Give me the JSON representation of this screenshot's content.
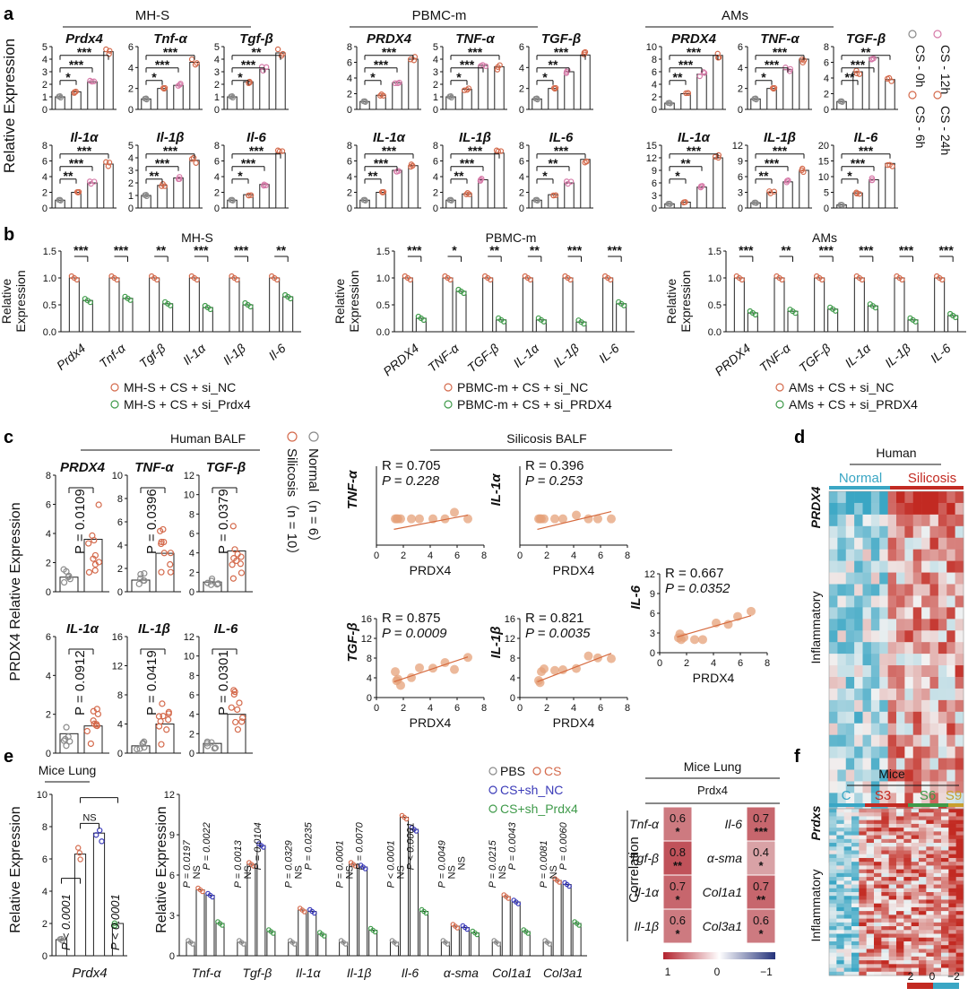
{
  "colors": {
    "grey": "#8a8a8a",
    "orange": "#d46a4c",
    "pink": "#d67aa8",
    "green": "#3f9a4a",
    "blue": "#3a3ab8",
    "fitline": "#d66a3e",
    "heat_hi": "#c22a22",
    "heat_mid": "#f2f2f2",
    "heat_lo": "#3aa6c4",
    "corr_hi": "#b3232e",
    "corr_lo": "#24327a"
  },
  "panel_labels": [
    "a",
    "b",
    "c",
    "d",
    "e",
    "f"
  ],
  "panel_a": {
    "y_label": "Relative Expression",
    "legend": [
      "CS - 0h",
      "CS - 6h",
      "CS - 12h",
      "CS - 24h"
    ],
    "groups": [
      {
        "title": "MH-S",
        "charts": [
          {
            "gene": "Prdx4",
            "ymax": 5,
            "ticks": [
              0,
              1,
              2,
              3,
              4,
              5
            ],
            "values": [
              1.0,
              1.4,
              2.2,
              4.6
            ],
            "sig": [
              "*",
              "***",
              "***"
            ]
          },
          {
            "gene": "Tnf-α",
            "ymax": 6,
            "ticks": [
              0,
              2,
              4,
              6
            ],
            "values": [
              1.0,
              2.0,
              2.3,
              4.5
            ],
            "sig": [
              "*",
              "***",
              "***"
            ]
          },
          {
            "gene": "Tgf-β",
            "ymax": 5,
            "ticks": [
              0,
              1,
              2,
              3,
              4,
              5
            ],
            "values": [
              1.0,
              2.2,
              3.2,
              4.5
            ],
            "sig": [
              "*",
              "***",
              "**"
            ]
          },
          {
            "gene": "Il-1α",
            "ymax": 8,
            "ticks": [
              0,
              2,
              4,
              6,
              8
            ],
            "values": [
              1.0,
              2.0,
              3.2,
              5.6
            ],
            "sig": [
              "**",
              "***",
              "***"
            ]
          },
          {
            "gene": "Il-1β",
            "ymax": 5,
            "ticks": [
              0,
              1,
              2,
              3,
              4,
              5
            ],
            "values": [
              1.0,
              1.8,
              2.4,
              3.8
            ],
            "sig": [
              "**",
              "***",
              "***"
            ]
          },
          {
            "gene": "Il-6",
            "ymax": 8,
            "ticks": [
              0,
              2,
              4,
              6,
              8
            ],
            "values": [
              1.0,
              1.7,
              3.0,
              7.0
            ],
            "sig": [
              "*",
              "***",
              "***"
            ]
          }
        ]
      },
      {
        "title": "PBMC-m",
        "charts": [
          {
            "gene": "PRDX4",
            "ymax": 8,
            "ticks": [
              0,
              2,
              4,
              6,
              8
            ],
            "values": [
              1.0,
              1.8,
              3.4,
              6.4
            ],
            "sig": [
              "*",
              "***",
              "***"
            ]
          },
          {
            "gene": "TNF-α",
            "ymax": 5,
            "ticks": [
              0,
              1,
              2,
              3,
              4,
              5
            ],
            "values": [
              1.0,
              1.6,
              3.5,
              3.4
            ],
            "sig": [
              "*",
              "***",
              "***"
            ]
          },
          {
            "gene": "TGF-β",
            "ymax": 6,
            "ticks": [
              0,
              2,
              4,
              6
            ],
            "values": [
              1.0,
              2.0,
              3.6,
              5.2
            ],
            "sig": [
              "*",
              "**",
              "***"
            ]
          },
          {
            "gene": "IL-1α",
            "ymax": 8,
            "ticks": [
              0,
              2,
              4,
              6,
              8
            ],
            "values": [
              1.0,
              2.0,
              4.8,
              5.4
            ],
            "sig": [
              "**",
              "***",
              "***"
            ]
          },
          {
            "gene": "IL-1β",
            "ymax": 8,
            "ticks": [
              0,
              2,
              4,
              6,
              8
            ],
            "values": [
              1.0,
              1.8,
              3.6,
              7.0
            ],
            "sig": [
              "**",
              "***",
              "***"
            ]
          },
          {
            "gene": "IL-6",
            "ymax": 8,
            "ticks": [
              0,
              2,
              4,
              6,
              8
            ],
            "values": [
              1.0,
              1.7,
              3.2,
              6.2
            ],
            "sig": [
              "*",
              "**",
              "***"
            ]
          }
        ]
      },
      {
        "title": "AMs",
        "charts": [
          {
            "gene": "PRDX4",
            "ymax": 10,
            "ticks": [
              0,
              2,
              4,
              6,
              8,
              10
            ],
            "values": [
              1.0,
              2.5,
              5.6,
              8.6
            ],
            "sig": [
              "**",
              "***",
              "***"
            ]
          },
          {
            "gene": "TNF-α",
            "ymax": 6,
            "ticks": [
              0,
              2,
              4,
              6
            ],
            "values": [
              1.0,
              2.0,
              3.8,
              4.8
            ],
            "sig": [
              "*",
              "***",
              "***"
            ]
          },
          {
            "gene": "TGF-β",
            "ymax": 8,
            "ticks": [
              0,
              2,
              4,
              6,
              8
            ],
            "values": [
              1.0,
              4.8,
              6.6,
              3.8
            ],
            "sig": [
              "**",
              "***",
              "**"
            ]
          },
          {
            "gene": "IL-1α",
            "ymax": 15,
            "ticks": [
              0,
              3,
              6,
              9,
              12,
              15
            ],
            "values": [
              1.0,
              1.4,
              5.0,
              12.0
            ],
            "sig": [
              "*",
              "**",
              "***"
            ]
          },
          {
            "gene": "IL-1β",
            "ymax": 12,
            "ticks": [
              0,
              3,
              6,
              9,
              12
            ],
            "values": [
              1.0,
              3.0,
              5.0,
              7.2
            ],
            "sig": [
              "**",
              "***",
              "***"
            ]
          },
          {
            "gene": "IL-6",
            "ymax": 20,
            "ticks": [
              0,
              5,
              10,
              15,
              20
            ],
            "values": [
              1.0,
              4.8,
              9.0,
              14.2
            ],
            "sig": [
              "*",
              "***",
              "***"
            ]
          }
        ]
      }
    ]
  },
  "panel_b": {
    "y_label_1": "Relative",
    "y_label_2": "Expression",
    "ticks": [
      "0.0",
      "0.5",
      "1.0",
      "1.5"
    ],
    "groups": [
      {
        "title": "MH-S",
        "genes": [
          "Prdx4",
          "Tnf-α",
          "Tgf-β",
          "Il-1α",
          "Il-1β",
          "Il-6"
        ],
        "italic": true,
        "nc": [
          1.0,
          1.0,
          1.0,
          1.0,
          1.0,
          1.0
        ],
        "si": [
          0.58,
          0.62,
          0.52,
          0.45,
          0.5,
          0.65
        ],
        "sig": [
          "***",
          "***",
          "**",
          "***",
          "***",
          "**"
        ],
        "legend": [
          "MH-S + CS + si_NC",
          "MH-S + CS + si_Prdx4"
        ]
      },
      {
        "title": "PBMC-m",
        "genes": [
          "PRDX4",
          "TNF-α",
          "TGF-β",
          "IL-1α",
          "IL-1β",
          "IL-6"
        ],
        "italic": true,
        "nc": [
          1.0,
          1.0,
          1.0,
          1.0,
          1.0,
          1.0
        ],
        "si": [
          0.25,
          0.75,
          0.22,
          0.22,
          0.18,
          0.52
        ],
        "sig": [
          "***",
          "*",
          "**",
          "**",
          "***",
          "***"
        ],
        "legend": [
          "PBMC-m + CS + si_NC",
          "PBMC-m + CS + si_PRDX4"
        ]
      },
      {
        "title": "AMs",
        "genes": [
          "PRDX4",
          "TNF-α",
          "TGF-β",
          "IL-1α",
          "IL-1β",
          "IL-6"
        ],
        "italic": true,
        "nc": [
          1.0,
          1.0,
          1.0,
          1.0,
          1.0,
          1.0
        ],
        "si": [
          0.35,
          0.38,
          0.42,
          0.48,
          0.22,
          0.3
        ],
        "sig": [
          "***",
          "**",
          "***",
          "***",
          "***",
          "***"
        ],
        "legend": [
          "AMs + CS + si_NC",
          "AMs + CS + si_PRDX4"
        ]
      }
    ]
  },
  "panel_c": {
    "title_left": "Human BALF",
    "title_right": "Silicosis BALF",
    "y_label": "PRDX4 Relative Expression",
    "legend": [
      "Normal（n = 6）",
      "Silicosis（n = 10）"
    ],
    "bars": [
      {
        "gene": "PRDX4",
        "ymax": 8,
        "ticks": [
          0,
          2,
          4,
          6,
          8
        ],
        "normal": 1.0,
        "silicosis": 3.6,
        "p": "P = 0.0109"
      },
      {
        "gene": "TNF-α",
        "ymax": 10,
        "ticks": [
          0,
          2,
          4,
          6,
          8,
          10
        ],
        "normal": 1.0,
        "silicosis": 3.3,
        "p": "P = 0.0396"
      },
      {
        "gene": "TGF-β",
        "ymax": 12,
        "ticks": [
          0,
          2,
          4,
          6,
          8,
          10,
          12
        ],
        "normal": 1.0,
        "silicosis": 4.2,
        "p": "P = 0.0379"
      },
      {
        "gene": "IL-1α",
        "ymax": 6,
        "ticks": [
          0,
          2,
          4,
          6
        ],
        "normal": 1.0,
        "silicosis": 1.4,
        "p": "P = 0.0912"
      },
      {
        "gene": "IL-1β",
        "ymax": 16,
        "ticks": [
          0,
          4,
          8,
          12,
          16
        ],
        "normal": 1.0,
        "silicosis": 4.0,
        "p": "P = 0.0419"
      },
      {
        "gene": "IL-6",
        "ymax": 12,
        "ticks": [
          0,
          2,
          4,
          6,
          8,
          10,
          12
        ],
        "normal": 1.0,
        "silicosis": 4.0,
        "p": "P = 0.0301"
      }
    ],
    "scatters": [
      {
        "gene": "TNF-α",
        "R": "R = 0.705",
        "P": "P = 0.228",
        "xlabel": "PRDX4",
        "xticks": [
          0,
          2,
          4,
          6,
          8
        ],
        "yticks": [],
        "ymax": 6
      },
      {
        "gene": "IL-1α",
        "R": "R = 0.396",
        "P": "P = 0.253",
        "xlabel": "PRDX4",
        "xticks": [
          0,
          2,
          4,
          6,
          8
        ],
        "yticks": [],
        "ymax": 6
      },
      {
        "gene": "IL-6",
        "R": "R = 0.667",
        "P": "P = 0.0352",
        "xlabel": "PRDX4",
        "xticks": [
          0,
          2,
          4,
          6,
          8
        ],
        "yticks": [
          0,
          3,
          6,
          9,
          12
        ],
        "ymax": 12
      },
      {
        "gene": "TGF-β",
        "R": "R = 0.875",
        "P": "P = 0.0009",
        "xlabel": "PRDX4",
        "xticks": [
          0,
          2,
          4,
          6,
          8
        ],
        "yticks": [
          0,
          4,
          8,
          12,
          16
        ],
        "ymax": 16
      },
      {
        "gene": "IL-1β",
        "R": "R = 0.821",
        "P": "P = 0.0035",
        "xlabel": "PRDX4",
        "xticks": [
          0,
          2,
          4,
          6,
          8
        ],
        "yticks": [
          0,
          4,
          8,
          12,
          16
        ],
        "ymax": 16
      }
    ]
  },
  "panel_d": {
    "title": "Human",
    "groups": [
      "Normal",
      "Silicosis"
    ],
    "row_labels": [
      "PRDX4",
      "Inflammatory"
    ],
    "scale": [
      "2",
      "0",
      "−2"
    ]
  },
  "panel_e": {
    "lung_title": "Mice Lung",
    "y_label": "Relative Expression",
    "legend": [
      "PBS",
      "CS",
      "CS+sh_NC",
      "CS+sh_Prdx4"
    ],
    "prdx4": {
      "gene": "Prdx4",
      "ymax": 10,
      "ticks": [
        0,
        2,
        4,
        6,
        8,
        10
      ],
      "values": [
        1.0,
        6.3,
        7.6,
        2.0
      ],
      "p": [
        "P < 0.0001",
        "NS",
        "P < 0.0001"
      ]
    },
    "multi": {
      "ymax": 12,
      "ticks": [
        0,
        3,
        6,
        9,
        12
      ],
      "genes": [
        "Tnf-α",
        "Tgf-β",
        "Il-1α",
        "Il-1β",
        "Il-6",
        "α-sma",
        "Col1a1",
        "Col3a1"
      ],
      "values": [
        [
          1.0,
          4.9,
          4.5,
          2.4
        ],
        [
          1.0,
          6.8,
          8.2,
          1.8
        ],
        [
          1.0,
          3.4,
          3.3,
          1.6
        ],
        [
          1.0,
          6.8,
          6.6,
          1.9
        ],
        [
          1.0,
          10.3,
          9.4,
          3.3
        ],
        [
          1.0,
          2.2,
          2.1,
          1.7
        ],
        [
          1.0,
          4.4,
          4.0,
          1.8
        ],
        [
          1.0,
          5.6,
          5.3,
          2.4
        ]
      ],
      "p": [
        [
          "P = 0.0197",
          "NS",
          "P = 0.0022"
        ],
        [
          "P = 0.0013",
          "NS",
          "P = 0.0104"
        ],
        [
          "P = 0.0329",
          "NS",
          "P = 0.0235"
        ],
        [
          "P = 0.0001",
          "NS",
          "P = 0.0070"
        ],
        [
          "P < 0.0001",
          "NS",
          "P < 0.0001"
        ],
        [
          "P = 0.0049",
          "NS",
          "NS"
        ],
        [
          "P = 0.0215",
          "NS",
          "P = 0.0043"
        ],
        [
          "P = 0.0081",
          "NS",
          "P = 0.0060"
        ]
      ]
    },
    "corr": {
      "title": "Mice Lung",
      "header": "Prdx4",
      "ylabel": "Correlation",
      "left": [
        {
          "gene": "Tnf-α",
          "r": "0.6",
          "s": "*"
        },
        {
          "gene": "Tgf-β",
          "r": "0.8",
          "s": "**"
        },
        {
          "gene": "Il-1α",
          "r": "0.7",
          "s": "*"
        },
        {
          "gene": "Il-1β",
          "r": "0.6",
          "s": "*"
        }
      ],
      "right": [
        {
          "gene": "Il-6",
          "r": "0.7",
          "s": "***"
        },
        {
          "gene": "α-sma",
          "r": "0.4",
          "s": "*"
        },
        {
          "gene": "Col1a1",
          "r": "0.7",
          "s": "**"
        },
        {
          "gene": "Col3a1",
          "r": "0.6",
          "s": "*"
        }
      ],
      "scale": [
        "1",
        "0",
        "−1"
      ]
    }
  },
  "panel_f": {
    "title": "Mice",
    "groups": [
      "C",
      "S3",
      "S6",
      "S9"
    ],
    "group_colors": [
      "#3aa6c4",
      "#c22a22",
      "#3f9a4a",
      "#c8a030"
    ],
    "row_labels": [
      "Prdxs",
      "Inflammatory"
    ],
    "scale": [
      "2",
      "0",
      "−2"
    ]
  }
}
